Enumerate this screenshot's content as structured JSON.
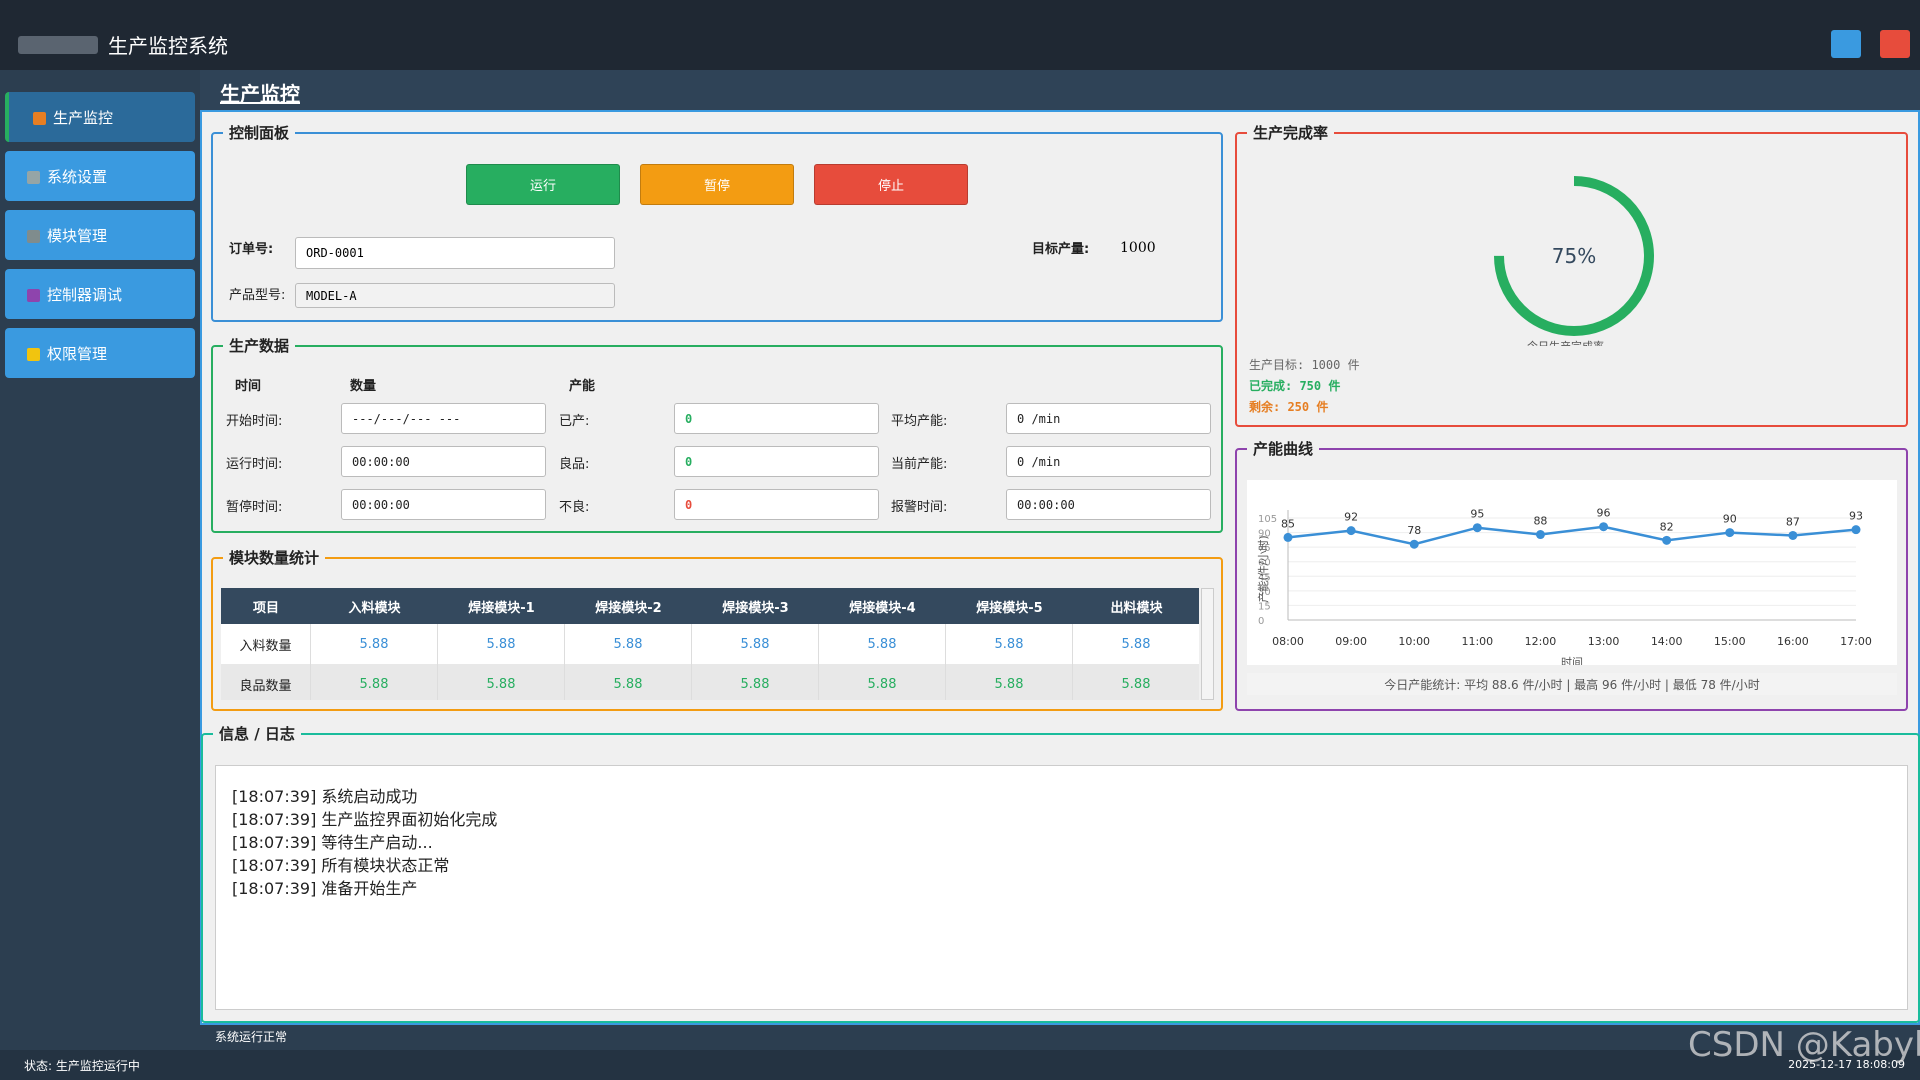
{
  "window": {
    "title": "生产监控系统"
  },
  "sidebar": {
    "items": [
      "生产监控",
      "系统设置",
      "模块管理",
      "控制器调试",
      "权限管理"
    ]
  },
  "page_title": "生产监控",
  "control_panel": {
    "title": "控制面板",
    "buttons": [
      "运行",
      "暂停",
      "停止"
    ],
    "order_label": "订单号:",
    "order_value": "ORD-0001",
    "product_label": "产品型号:",
    "product_value": "MODEL-A",
    "target_label": "目标产量:",
    "target_value": "1000"
  },
  "production_data": {
    "title": "生产数据",
    "headers": [
      "时间",
      "数量",
      "产能"
    ],
    "rows": [
      [
        "开始时间:",
        "---/---/--- ---",
        "已产:",
        "0",
        "平均产能:",
        "0 /min"
      ],
      [
        "运行时间:",
        "00:00:00",
        "良品:",
        "0",
        "当前产能:",
        "0 /min"
      ],
      [
        "暂停时间:",
        "00:00:00",
        "不良:",
        "0",
        "报警时间:",
        "00:00:00"
      ]
    ]
  },
  "module_stats": {
    "title": "模块数量统计",
    "columns": [
      "项目",
      "入料模块",
      "焊接模块-1",
      "焊接模块-2",
      "焊接模块-3",
      "焊接模块-4",
      "焊接模块-5",
      "出料模块"
    ],
    "rows": [
      [
        "入料数量",
        "5.88",
        "5.88",
        "5.88",
        "5.88",
        "5.88",
        "5.88",
        "5.88"
      ],
      [
        "良品数量",
        "5.88",
        "5.88",
        "5.88",
        "5.88",
        "5.88",
        "5.88",
        "5.88"
      ]
    ]
  },
  "completion": {
    "title": "生产完成率",
    "value": 75,
    "value_label": "75%",
    "caption": "今日生产完成率",
    "lines": [
      "生产目标: 1000 件",
      "已完成: 750 件",
      "剩余: 250 件"
    ]
  },
  "chart_data": {
    "type": "line",
    "title": "产能曲线",
    "x_label": "时间",
    "y_label": "产能(件/小时)",
    "categories": [
      "08:00",
      "09:00",
      "10:00",
      "11:00",
      "12:00",
      "13:00",
      "14:00",
      "15:00",
      "16:00",
      "17:00"
    ],
    "values": [
      85,
      92,
      78,
      95,
      88,
      96,
      82,
      90,
      87,
      93
    ],
    "color": "#3a8fd6",
    "ylim": [
      0,
      105
    ],
    "yticks": [
      0,
      15,
      30,
      45,
      60,
      75,
      90,
      105
    ],
    "grid": true,
    "summary": "今日产能统计: 平均 88.6 件/小时 | 最高 96 件/小时 | 最低 78 件/小时"
  },
  "log": {
    "title": "信息 / 日志",
    "lines": [
      "[18:07:39] 系统启动成功",
      "[18:07:39] 生产监控界面初始化完成",
      "[18:07:39] 等待生产启动...",
      "[18:07:39] 所有模块状态正常",
      "[18:07:39] 准备开始生产"
    ]
  },
  "status": {
    "message": "系统运行正常",
    "state": "状态: 生产监控运行中",
    "time": "2025-12-17 18:08:09"
  },
  "watermark": "CSDN @Kabyl"
}
